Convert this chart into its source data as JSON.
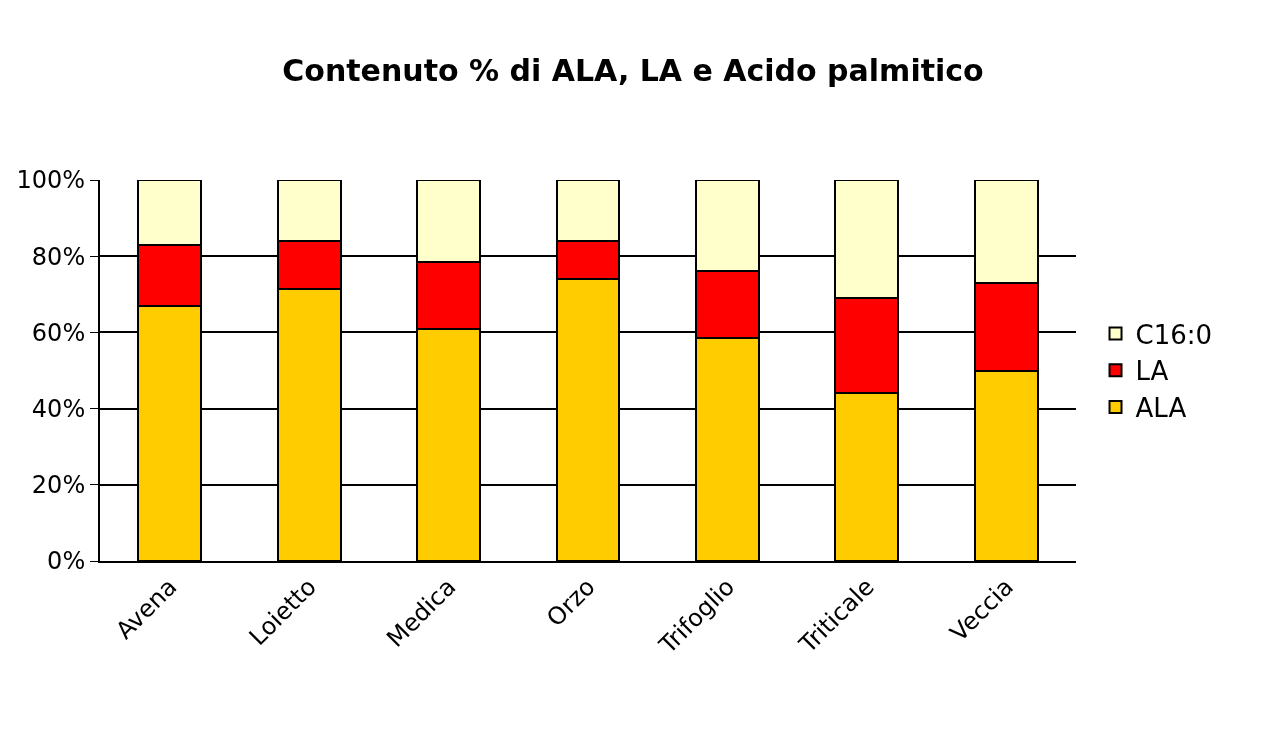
{
  "chart_data": {
    "type": "bar",
    "title": "Contenuto % di ALA, LA e Acido palmitico",
    "stacked": true,
    "categories": [
      "Avena",
      "Loietto",
      "Medica",
      "Orzo",
      "Trifoglio",
      "Triticale",
      "Veccia"
    ],
    "series": [
      {
        "name": "ALA",
        "color": "#ffcc00",
        "values": [
          67,
          71.5,
          61,
          74,
          58.5,
          44,
          50
        ]
      },
      {
        "name": "LA",
        "color": "#ff0000",
        "values": [
          16,
          12.5,
          17.5,
          10,
          17.5,
          25,
          23
        ]
      },
      {
        "name": "C16:0",
        "color": "#ffffcc",
        "values": [
          17,
          16,
          21.5,
          16,
          24,
          31,
          27
        ]
      }
    ],
    "ylim": [
      0,
      100
    ],
    "yticks": [
      {
        "value": 0,
        "label": "0%"
      },
      {
        "value": 20,
        "label": "20%"
      },
      {
        "value": 40,
        "label": "40%"
      },
      {
        "value": 60,
        "label": "60%"
      },
      {
        "value": 80,
        "label": "80%"
      },
      {
        "value": 100,
        "label": "100%"
      }
    ],
    "grid": "y",
    "legend": "right"
  }
}
